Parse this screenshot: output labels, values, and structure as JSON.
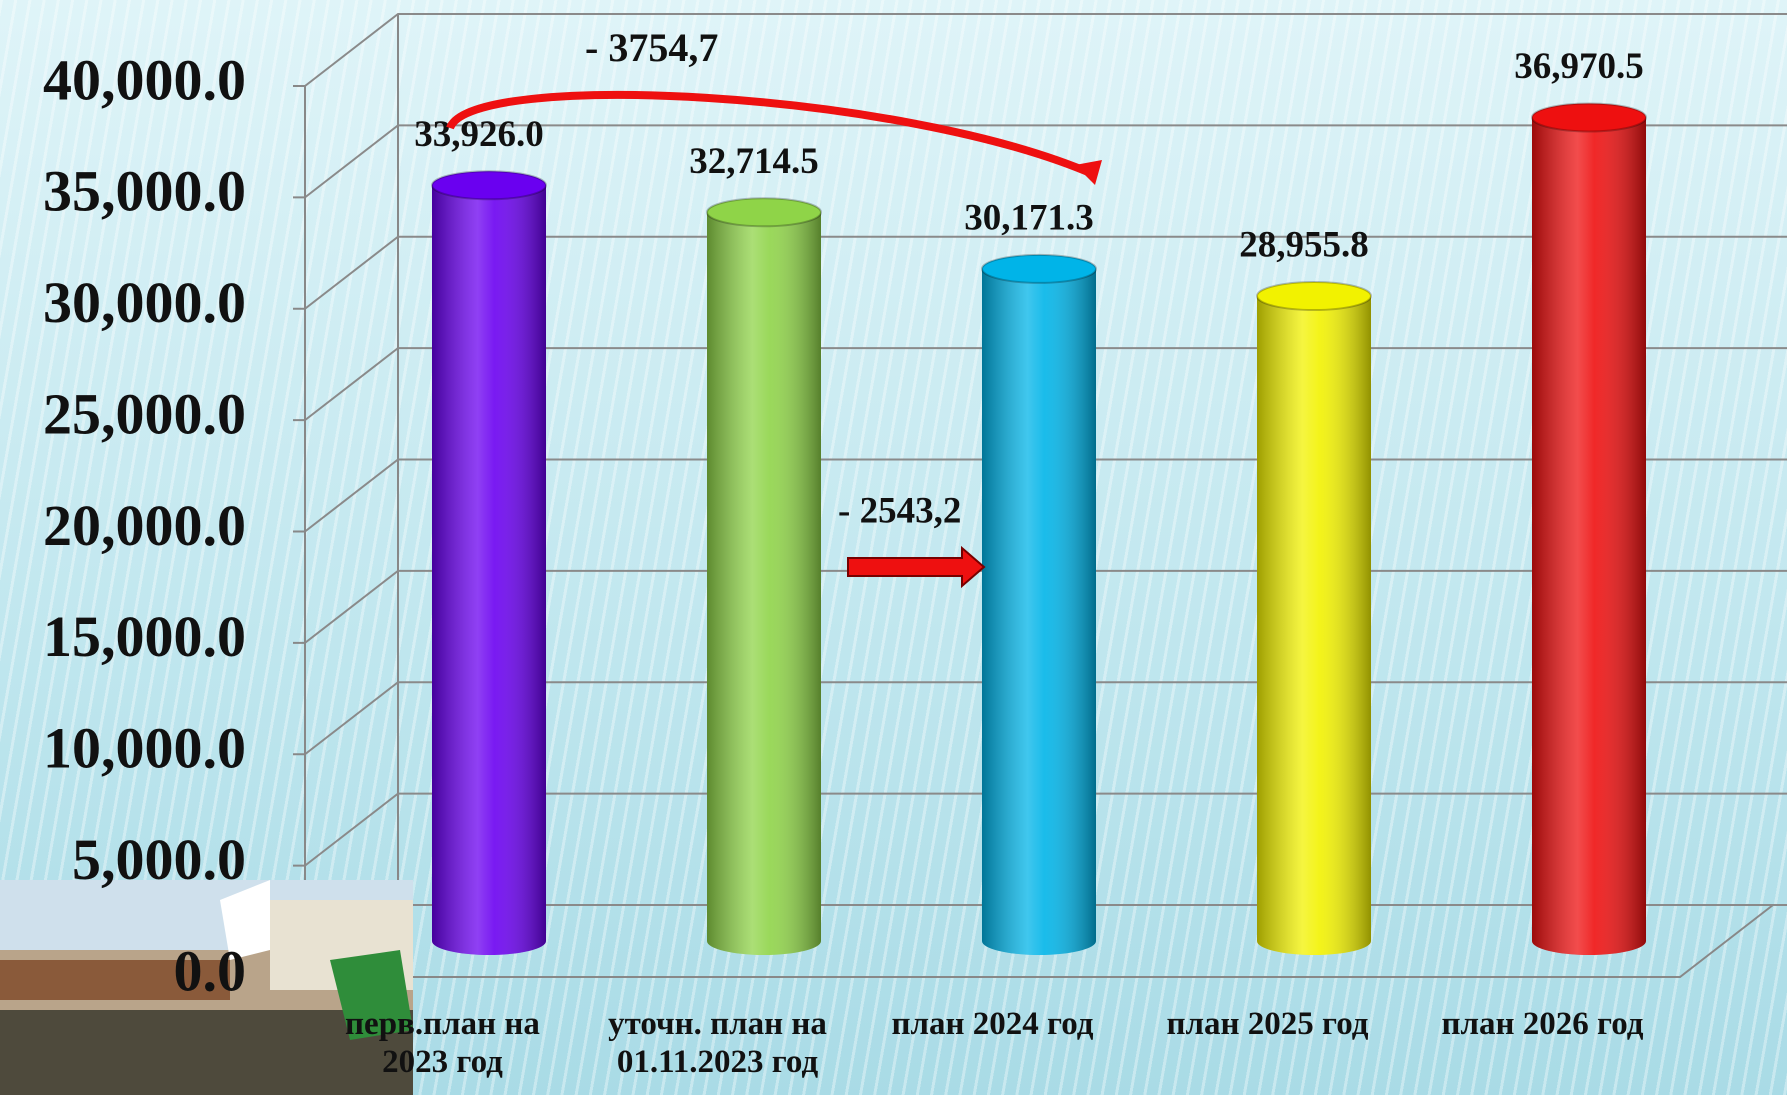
{
  "chart_data": {
    "type": "bar",
    "categories": [
      "перв.план на 2023 год",
      "уточн. план на 01.11.2023 год",
      "план 2024 год",
      "план 2025 год",
      "план 2026 год"
    ],
    "values": [
      33926.0,
      32714.5,
      30171.3,
      28955.8,
      36970.5
    ],
    "value_labels": [
      "33,926.0",
      "32,714.5",
      "30,171.3",
      "28,955.8",
      "36,970.5"
    ],
    "colors": [
      "#6a00f0",
      "#8fd448",
      "#00b4e8",
      "#f2f200",
      "#ee1010"
    ],
    "ylim": [
      0,
      40000
    ],
    "yticks": [
      {
        "value": 0,
        "label": "0.0"
      },
      {
        "value": 5000,
        "label": "5,000.0"
      },
      {
        "value": 10000,
        "label": "10,000.0"
      },
      {
        "value": 15000,
        "label": "15,000.0"
      },
      {
        "value": 20000,
        "label": "20,000.0"
      },
      {
        "value": 25000,
        "label": "25,000.0"
      },
      {
        "value": 30000,
        "label": "30,000.0"
      },
      {
        "value": 35000,
        "label": "35,000.0"
      },
      {
        "value": 40000,
        "label": "40,000.0"
      }
    ],
    "grid": true,
    "annotations": [
      "- 3754,7",
      "- 2543,2"
    ]
  }
}
